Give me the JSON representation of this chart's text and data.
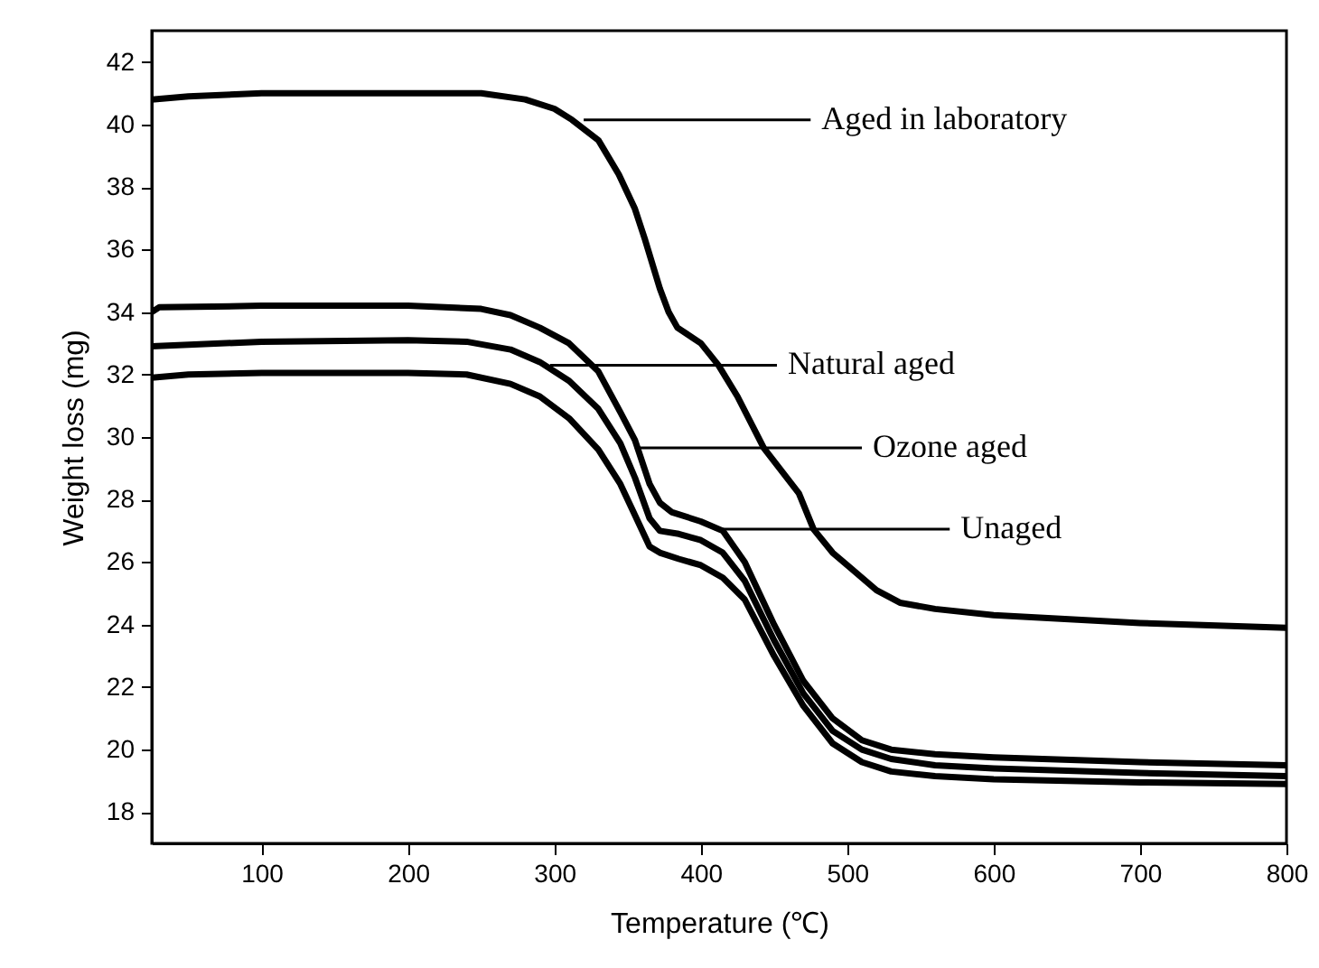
{
  "chart_data": {
    "type": "line",
    "xlabel": "Temperature (℃)",
    "ylabel": "Weight loss (mg)",
    "xlim": [
      25,
      800
    ],
    "ylim": [
      17,
      43
    ],
    "xticks": [
      100,
      200,
      300,
      400,
      500,
      600,
      700,
      800
    ],
    "yticks": [
      18,
      20,
      22,
      24,
      26,
      28,
      30,
      32,
      34,
      36,
      38,
      40,
      42
    ],
    "grid": false,
    "line_style": "solid",
    "marker": "none",
    "series": [
      {
        "color": "#000000",
        "x": [
          25,
          50,
          100,
          200,
          250,
          280,
          300,
          312,
          330,
          344,
          355,
          362,
          372,
          378,
          384,
          400,
          412,
          425,
          443,
          467,
          477,
          490,
          500,
          520,
          536,
          560,
          600,
          700,
          800
        ],
        "values": [
          40.8,
          40.9,
          41.0,
          41.0,
          41.0,
          40.8,
          40.5,
          40.15,
          39.5,
          38.4,
          37.3,
          36.3,
          34.75,
          34.0,
          33.5,
          33.0,
          32.3,
          31.3,
          29.65,
          28.2,
          27.05,
          26.3,
          25.9,
          25.1,
          24.7,
          24.5,
          24.3,
          24.05,
          23.9
        ]
      },
      {
        "color": "#000000",
        "x": [
          25,
          30,
          100,
          200,
          250,
          270,
          290,
          310,
          330,
          345,
          355,
          365,
          372,
          380,
          400,
          415,
          430,
          450,
          470,
          490,
          510,
          530,
          560,
          600,
          700,
          800
        ],
        "values": [
          34.0,
          34.15,
          34.2,
          34.2,
          34.1,
          33.9,
          33.5,
          33.0,
          32.1,
          30.8,
          29.9,
          28.5,
          27.9,
          27.6,
          27.3,
          27.0,
          26.0,
          24.0,
          22.2,
          21.0,
          20.3,
          20.0,
          19.85,
          19.75,
          19.6,
          19.5
        ]
      },
      {
        "color": "#000000",
        "x": [
          25,
          100,
          200,
          240,
          270,
          290,
          310,
          330,
          345,
          355,
          365,
          372,
          385,
          400,
          415,
          430,
          450,
          470,
          490,
          510,
          530,
          560,
          600,
          700,
          800
        ],
        "values": [
          32.9,
          33.05,
          33.1,
          33.05,
          32.8,
          32.4,
          31.8,
          30.9,
          29.8,
          28.7,
          27.4,
          27.0,
          26.9,
          26.7,
          26.3,
          25.4,
          23.5,
          21.8,
          20.6,
          20.0,
          19.7,
          19.5,
          19.4,
          19.25,
          19.15
        ]
      },
      {
        "color": "#000000",
        "x": [
          25,
          50,
          100,
          200,
          240,
          270,
          290,
          310,
          330,
          345,
          355,
          365,
          372,
          385,
          400,
          415,
          430,
          450,
          470,
          490,
          510,
          530,
          560,
          600,
          700,
          800
        ],
        "values": [
          31.9,
          32.0,
          32.05,
          32.05,
          32.0,
          31.7,
          31.3,
          30.6,
          29.6,
          28.5,
          27.5,
          26.5,
          26.3,
          26.1,
          25.9,
          25.5,
          24.8,
          23.0,
          21.4,
          20.2,
          19.6,
          19.3,
          19.15,
          19.05,
          18.95,
          18.9
        ]
      }
    ],
    "annotations": [
      {
        "text": "Aged in laboratory",
        "x": 320,
        "y": 40.15
      },
      {
        "text": "Natural aged",
        "x": 297,
        "y": 32.3
      },
      {
        "text": "Ozone aged",
        "x": 355,
        "y": 29.65
      },
      {
        "text": "Unaged",
        "x": 415,
        "y": 27.05
      }
    ]
  }
}
